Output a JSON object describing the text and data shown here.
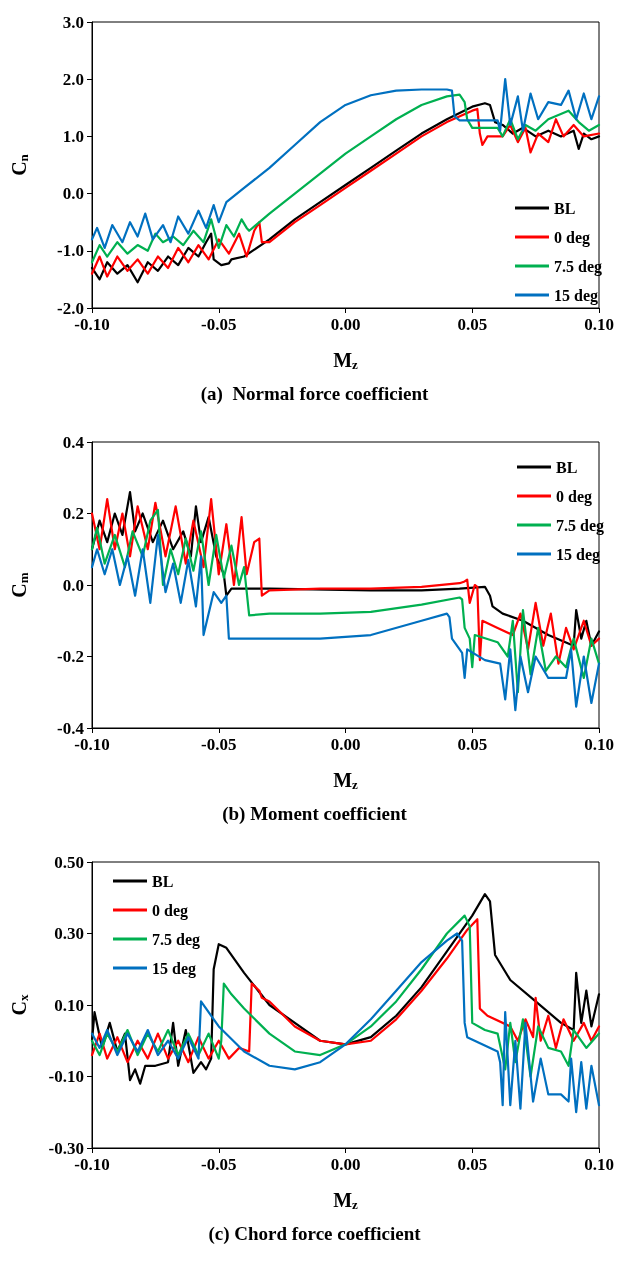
{
  "chart_data": [
    {
      "type": "line",
      "title": "(a)  Normal force coefficient",
      "xlabel": "M$_{z}$",
      "ylabel": "C$_{n}$",
      "legend": "bottom right",
      "grid": false,
      "marker": "none",
      "line_style": "solid",
      "xlim": [
        -0.1,
        0.1
      ],
      "xticks": [
        {
          "value": -0.1,
          "label": "-0.10"
        },
        {
          "value": -0.05,
          "label": "-0.05"
        },
        {
          "value": 0,
          "label": "0.00"
        },
        {
          "value": 0.05,
          "label": "0.05"
        },
        {
          "value": 0.1,
          "label": "0.10"
        }
      ],
      "ylim": [
        -2,
        3
      ],
      "yticks": [
        {
          "value": -2,
          "label": "-2.0"
        },
        {
          "value": -1,
          "label": "-1.0"
        },
        {
          "value": 0,
          "label": "0.0"
        },
        {
          "value": 1,
          "label": "1.0"
        },
        {
          "value": 2,
          "label": "2.0"
        },
        {
          "value": 3,
          "label": "3.0"
        }
      ],
      "series": [
        {
          "name": "BL",
          "color": "#000000",
          "x": [
            -0.1,
            -0.097,
            -0.094,
            -0.09,
            -0.086,
            -0.082,
            -0.078,
            -0.074,
            -0.07,
            -0.066,
            -0.062,
            -0.058,
            -0.055,
            -0.053,
            -0.052,
            -0.049,
            -0.046,
            -0.045,
            -0.04,
            -0.03,
            -0.02,
            -0.01,
            0,
            0.01,
            0.02,
            0.03,
            0.04,
            0.05,
            0.055,
            0.057,
            0.059,
            0.062,
            0.066,
            0.07,
            0.075,
            0.08,
            0.085,
            0.09,
            0.092,
            0.094,
            0.097,
            0.1
          ],
          "values": [
            -1.3,
            -1.5,
            -1.2,
            -1.4,
            -1.25,
            -1.55,
            -1.2,
            -1.35,
            -1.1,
            -1.25,
            -0.95,
            -1.1,
            -0.85,
            -0.7,
            -1.15,
            -1.25,
            -1.22,
            -1.15,
            -1.1,
            -0.8,
            -0.45,
            -0.15,
            0.15,
            0.45,
            0.75,
            1.05,
            1.3,
            1.52,
            1.58,
            1.55,
            1.25,
            1.2,
            1.05,
            1.15,
            1.0,
            1.1,
            1.0,
            1.1,
            0.78,
            1.05,
            0.95,
            1.0
          ]
        },
        {
          "name": "0 deg",
          "color": "#ff0000",
          "x": [
            -0.1,
            -0.097,
            -0.094,
            -0.09,
            -0.086,
            -0.082,
            -0.078,
            -0.074,
            -0.07,
            -0.066,
            -0.062,
            -0.058,
            -0.054,
            -0.05,
            -0.046,
            -0.042,
            -0.039,
            -0.036,
            -0.034,
            -0.033,
            -0.03,
            -0.02,
            -0.01,
            0,
            0.01,
            0.02,
            0.03,
            0.04,
            0.05,
            0.052,
            0.053,
            0.054,
            0.056,
            0.062,
            0.065,
            0.068,
            0.071,
            0.073,
            0.076,
            0.08,
            0.083,
            0.086,
            0.09,
            0.094,
            0.1
          ],
          "values": [
            -1.4,
            -1.1,
            -1.45,
            -1.1,
            -1.35,
            -1.15,
            -1.4,
            -1.1,
            -1.3,
            -0.95,
            -1.2,
            -0.9,
            -1.15,
            -0.8,
            -1.05,
            -0.7,
            -1.1,
            -0.65,
            -0.5,
            -0.85,
            -0.85,
            -0.5,
            -0.2,
            0.1,
            0.4,
            0.7,
            1.0,
            1.25,
            1.45,
            1.48,
            1.05,
            0.85,
            1.0,
            1.0,
            1.2,
            0.9,
            1.15,
            0.72,
            1.05,
            0.9,
            1.3,
            1.0,
            1.2,
            1.0,
            1.05
          ]
        },
        {
          "name": "7.5 deg",
          "color": "#00b050",
          "x": [
            -0.1,
            -0.097,
            -0.094,
            -0.09,
            -0.086,
            -0.082,
            -0.078,
            -0.075,
            -0.072,
            -0.068,
            -0.064,
            -0.06,
            -0.056,
            -0.053,
            -0.05,
            -0.047,
            -0.044,
            -0.041,
            -0.039,
            -0.038,
            -0.03,
            -0.02,
            -0.01,
            0,
            0.01,
            0.02,
            0.03,
            0.04,
            0.045,
            0.047,
            0.048,
            0.05,
            0.06,
            0.062,
            0.065,
            0.068,
            0.071,
            0.075,
            0.08,
            0.088,
            0.092,
            0.096,
            0.1
          ],
          "values": [
            -1.2,
            -0.9,
            -1.1,
            -0.85,
            -1.05,
            -0.9,
            -1.0,
            -0.7,
            -0.85,
            -0.75,
            -0.9,
            -0.65,
            -0.85,
            -0.45,
            -0.95,
            -0.55,
            -0.75,
            -0.45,
            -0.6,
            -0.65,
            -0.35,
            0.0,
            0.35,
            0.7,
            1.0,
            1.3,
            1.55,
            1.7,
            1.73,
            1.6,
            1.3,
            1.15,
            1.15,
            1.0,
            1.3,
            0.95,
            1.2,
            1.1,
            1.3,
            1.45,
            1.25,
            1.1,
            1.2
          ]
        },
        {
          "name": "15 deg",
          "color": "#0070c0",
          "x": [
            -0.1,
            -0.098,
            -0.095,
            -0.092,
            -0.088,
            -0.085,
            -0.082,
            -0.079,
            -0.076,
            -0.072,
            -0.069,
            -0.066,
            -0.062,
            -0.058,
            -0.055,
            -0.052,
            -0.05,
            -0.047,
            -0.04,
            -0.03,
            -0.02,
            -0.01,
            0,
            0.01,
            0.02,
            0.03,
            0.04,
            0.042,
            0.043,
            0.045,
            0.06,
            0.061,
            0.063,
            0.065,
            0.068,
            0.07,
            0.073,
            0.076,
            0.08,
            0.085,
            0.088,
            0.091,
            0.094,
            0.097,
            0.1
          ],
          "values": [
            -0.8,
            -0.6,
            -0.95,
            -0.55,
            -0.85,
            -0.5,
            -0.75,
            -0.35,
            -0.8,
            -0.55,
            -0.85,
            -0.4,
            -0.7,
            -0.3,
            -0.6,
            -0.2,
            -0.5,
            -0.15,
            0.1,
            0.45,
            0.85,
            1.25,
            1.55,
            1.72,
            1.8,
            1.82,
            1.82,
            1.8,
            1.35,
            1.28,
            1.28,
            1.1,
            2.0,
            1.2,
            1.7,
            1.1,
            1.75,
            1.3,
            1.6,
            1.55,
            1.8,
            1.3,
            1.75,
            1.3,
            1.7
          ]
        }
      ]
    },
    {
      "type": "line",
      "title": "(b) Moment coefficient",
      "xlabel": "M$_{z}$",
      "ylabel": "C$_{m}$",
      "legend": "top right",
      "grid": false,
      "marker": "none",
      "line_style": "solid",
      "xlim": [
        -0.1,
        0.1
      ],
      "xticks": [
        {
          "value": -0.1,
          "label": "-0.10"
        },
        {
          "value": -0.05,
          "label": "-0.05"
        },
        {
          "value": 0,
          "label": "0.00"
        },
        {
          "value": 0.05,
          "label": "0.05"
        },
        {
          "value": 0.1,
          "label": "0.10"
        }
      ],
      "ylim": [
        -0.4,
        0.4
      ],
      "yticks": [
        -0.4,
        -0.2,
        {
          "value": 0,
          "label": "0.0"
        },
        0.2,
        0.4
      ],
      "series": [
        {
          "name": "BL",
          "color": "#000000",
          "x": [
            -0.1,
            -0.097,
            -0.094,
            -0.091,
            -0.088,
            -0.085,
            -0.083,
            -0.08,
            -0.076,
            -0.072,
            -0.068,
            -0.064,
            -0.061,
            -0.059,
            -0.057,
            -0.054,
            -0.051,
            -0.048,
            -0.047,
            -0.045,
            -0.03,
            0.01,
            0.03,
            0.045,
            0.055,
            0.057,
            0.058,
            0.062,
            0.07,
            0.08,
            0.09,
            0.091,
            0.093,
            0.095,
            0.097,
            0.1
          ],
          "values": [
            0.1,
            0.18,
            0.12,
            0.2,
            0.14,
            0.26,
            0.15,
            0.2,
            0.12,
            0.18,
            0.1,
            0.15,
            0.08,
            0.22,
            0.12,
            0.19,
            0.08,
            0.03,
            -0.03,
            -0.01,
            -0.01,
            -0.015,
            -0.015,
            -0.01,
            -0.005,
            -0.03,
            -0.06,
            -0.08,
            -0.1,
            -0.14,
            -0.17,
            -0.07,
            -0.15,
            -0.1,
            -0.17,
            -0.13
          ]
        },
        {
          "name": "0 deg",
          "color": "#ff0000",
          "x": [
            -0.1,
            -0.097,
            -0.094,
            -0.091,
            -0.088,
            -0.085,
            -0.082,
            -0.078,
            -0.075,
            -0.071,
            -0.067,
            -0.063,
            -0.06,
            -0.056,
            -0.053,
            -0.05,
            -0.047,
            -0.044,
            -0.041,
            -0.039,
            -0.036,
            -0.034,
            -0.033,
            -0.03,
            -0.01,
            0.01,
            0.03,
            0.045,
            0.047,
            0.048,
            0.049,
            0.051,
            0.052,
            0.053,
            0.054,
            0.06,
            0.066,
            0.069,
            0.072,
            0.075,
            0.078,
            0.081,
            0.084,
            0.087,
            0.09,
            0.094,
            0.097,
            0.1
          ],
          "values": [
            0.2,
            0.1,
            0.24,
            0.1,
            0.2,
            0.08,
            0.22,
            0.1,
            0.23,
            0.08,
            0.22,
            0.06,
            0.18,
            0.05,
            0.24,
            0.03,
            0.17,
            0.0,
            0.19,
            0.03,
            0.12,
            0.13,
            -0.03,
            -0.015,
            -0.01,
            -0.01,
            -0.005,
            0.005,
            0.01,
            0.015,
            -0.05,
            0.0,
            -0.005,
            -0.21,
            -0.1,
            -0.12,
            -0.14,
            -0.08,
            -0.18,
            -0.05,
            -0.17,
            -0.08,
            -0.22,
            -0.12,
            -0.18,
            -0.1,
            -0.17,
            -0.15
          ]
        },
        {
          "name": "7.5 deg",
          "color": "#00b050",
          "x": [
            -0.1,
            -0.098,
            -0.095,
            -0.091,
            -0.087,
            -0.084,
            -0.08,
            -0.077,
            -0.074,
            -0.072,
            -0.069,
            -0.066,
            -0.063,
            -0.06,
            -0.057,
            -0.054,
            -0.051,
            -0.048,
            -0.045,
            -0.042,
            -0.04,
            -0.038,
            -0.03,
            -0.01,
            0.01,
            0.03,
            0.045,
            0.046,
            0.047,
            0.049,
            0.05,
            0.051,
            0.06,
            0.064,
            0.066,
            0.068,
            0.07,
            0.073,
            0.076,
            0.079,
            0.083,
            0.087,
            0.09,
            0.094,
            0.097,
            0.1
          ],
          "values": [
            0.1,
            0.16,
            0.06,
            0.14,
            0.05,
            0.15,
            0.08,
            0.18,
            0.21,
            0.0,
            0.1,
            0.03,
            0.13,
            0.04,
            0.15,
            0.0,
            0.14,
            0.02,
            0.11,
            0.0,
            0.05,
            -0.085,
            -0.08,
            -0.08,
            -0.075,
            -0.055,
            -0.035,
            -0.04,
            -0.12,
            -0.15,
            -0.23,
            -0.14,
            -0.16,
            -0.2,
            -0.1,
            -0.3,
            -0.07,
            -0.25,
            -0.12,
            -0.24,
            -0.2,
            -0.23,
            -0.15,
            -0.26,
            -0.15,
            -0.22
          ]
        },
        {
          "name": "15 deg",
          "color": "#0070c0",
          "x": [
            -0.1,
            -0.098,
            -0.095,
            -0.092,
            -0.089,
            -0.086,
            -0.083,
            -0.08,
            -0.077,
            -0.074,
            -0.071,
            -0.068,
            -0.065,
            -0.062,
            -0.059,
            -0.057,
            -0.056,
            -0.052,
            -0.049,
            -0.047,
            -0.046,
            -0.03,
            -0.01,
            0.01,
            0.03,
            0.04,
            0.041,
            0.042,
            0.046,
            0.047,
            0.048,
            0.055,
            0.061,
            0.063,
            0.065,
            0.067,
            0.069,
            0.072,
            0.075,
            0.08,
            0.087,
            0.089,
            0.091,
            0.094,
            0.097,
            0.1
          ],
          "values": [
            0.05,
            0.1,
            0.03,
            0.1,
            0.0,
            0.08,
            -0.03,
            0.1,
            -0.05,
            0.14,
            -0.02,
            0.06,
            -0.05,
            0.07,
            -0.06,
            0.08,
            -0.14,
            -0.02,
            -0.05,
            -0.03,
            -0.15,
            -0.15,
            -0.15,
            -0.14,
            -0.1,
            -0.08,
            -0.09,
            -0.15,
            -0.19,
            -0.26,
            -0.18,
            -0.21,
            -0.22,
            -0.32,
            -0.18,
            -0.35,
            -0.2,
            -0.3,
            -0.2,
            -0.26,
            -0.26,
            -0.18,
            -0.34,
            -0.2,
            -0.33,
            -0.22
          ]
        }
      ]
    },
    {
      "type": "line",
      "title": "(c) Chord force coefficient",
      "xlabel": "M$_{z}$",
      "ylabel": "C$_{x}$",
      "legend": "top left",
      "grid": false,
      "marker": "none",
      "line_style": "solid",
      "xlim": [
        -0.1,
        0.1
      ],
      "xticks": [
        {
          "value": -0.1,
          "label": "-0.10"
        },
        {
          "value": -0.05,
          "label": "-0.05"
        },
        {
          "value": 0,
          "label": "0.00"
        },
        {
          "value": 0.05,
          "label": "0.05"
        },
        {
          "value": 0.1,
          "label": "0.10"
        }
      ],
      "ylim": [
        -0.3,
        0.5
      ],
      "yticks": [
        {
          "value": -0.3,
          "label": "-0.30"
        },
        {
          "value": -0.1,
          "label": "-0.10"
        },
        {
          "value": 0.1,
          "label": "0.10"
        },
        {
          "value": 0.3,
          "label": "0.30"
        },
        {
          "value": 0.5,
          "label": "0.50"
        }
      ],
      "series": [
        {
          "name": "BL",
          "color": "#000000",
          "x": [
            -0.1,
            -0.099,
            -0.096,
            -0.093,
            -0.09,
            -0.087,
            -0.085,
            -0.083,
            -0.081,
            -0.079,
            -0.075,
            -0.07,
            -0.068,
            -0.066,
            -0.063,
            -0.06,
            -0.057,
            -0.055,
            -0.053,
            -0.052,
            -0.05,
            -0.047,
            -0.04,
            -0.03,
            -0.01,
            0,
            0.01,
            0.02,
            0.03,
            0.04,
            0.05,
            0.055,
            0.057,
            0.059,
            0.065,
            0.075,
            0.085,
            0.09,
            0.091,
            0.093,
            0.095,
            0.097,
            0.1
          ],
          "values": [
            0.0,
            0.08,
            -0.02,
            0.05,
            -0.03,
            0.02,
            -0.11,
            -0.08,
            -0.12,
            -0.07,
            -0.07,
            -0.06,
            0.05,
            -0.07,
            0.03,
            -0.09,
            -0.06,
            -0.08,
            -0.05,
            0.2,
            0.27,
            0.26,
            0.19,
            0.1,
            0.0,
            -0.01,
            0.01,
            0.07,
            0.15,
            0.25,
            0.35,
            0.41,
            0.39,
            0.24,
            0.17,
            0.11,
            0.05,
            0.03,
            0.19,
            0.05,
            0.14,
            0.04,
            0.13
          ]
        },
        {
          "name": "0 deg",
          "color": "#ff0000",
          "x": [
            -0.1,
            -0.097,
            -0.094,
            -0.09,
            -0.086,
            -0.082,
            -0.078,
            -0.074,
            -0.07,
            -0.066,
            -0.062,
            -0.058,
            -0.054,
            -0.05,
            -0.046,
            -0.042,
            -0.038,
            -0.037,
            -0.034,
            -0.033,
            -0.03,
            -0.02,
            -0.01,
            0,
            0.01,
            0.02,
            0.03,
            0.04,
            0.048,
            0.052,
            0.053,
            0.056,
            0.065,
            0.068,
            0.071,
            0.074,
            0.075,
            0.077,
            0.08,
            0.083,
            0.086,
            0.09,
            0.094,
            0.097,
            0.1
          ],
          "values": [
            -0.04,
            0.02,
            -0.05,
            0.01,
            -0.06,
            0.0,
            -0.05,
            0.02,
            -0.05,
            0.0,
            -0.06,
            0.01,
            -0.05,
            0.0,
            -0.05,
            -0.02,
            -0.03,
            0.16,
            0.14,
            0.12,
            0.11,
            0.04,
            0.0,
            -0.01,
            0.0,
            0.06,
            0.14,
            0.23,
            0.31,
            0.34,
            0.09,
            0.07,
            0.04,
            0.0,
            0.06,
            0.01,
            0.12,
            0.0,
            0.07,
            -0.02,
            0.06,
            0.0,
            0.05,
            0.0,
            0.04
          ]
        },
        {
          "name": "7.5 deg",
          "color": "#00b050",
          "x": [
            -0.1,
            -0.097,
            -0.094,
            -0.09,
            -0.086,
            -0.082,
            -0.078,
            -0.074,
            -0.07,
            -0.066,
            -0.062,
            -0.058,
            -0.054,
            -0.05,
            -0.049,
            -0.048,
            -0.045,
            -0.04,
            -0.03,
            -0.02,
            -0.01,
            0,
            0.01,
            0.02,
            0.03,
            0.04,
            0.047,
            0.049,
            0.05,
            0.055,
            0.06,
            0.063,
            0.065,
            0.067,
            0.07,
            0.073,
            0.076,
            0.08,
            0.085,
            0.088,
            0.09,
            0.095,
            0.1
          ],
          "values": [
            0.0,
            -0.04,
            0.02,
            -0.03,
            0.03,
            -0.04,
            0.02,
            -0.03,
            0.03,
            -0.04,
            0.02,
            -0.04,
            0.02,
            -0.05,
            0.0,
            0.16,
            0.13,
            0.09,
            0.02,
            -0.03,
            -0.04,
            -0.01,
            0.04,
            0.11,
            0.2,
            0.3,
            0.35,
            0.32,
            0.05,
            0.03,
            0.02,
            -0.08,
            0.05,
            -0.06,
            0.06,
            -0.1,
            0.04,
            -0.02,
            -0.03,
            -0.07,
            0.03,
            -0.02,
            0.02
          ]
        },
        {
          "name": "15 deg",
          "color": "#0070c0",
          "x": [
            -0.1,
            -0.097,
            -0.094,
            -0.09,
            -0.086,
            -0.082,
            -0.078,
            -0.074,
            -0.07,
            -0.066,
            -0.062,
            -0.058,
            -0.057,
            -0.05,
            -0.04,
            -0.03,
            -0.02,
            -0.01,
            0,
            0.01,
            0.02,
            0.03,
            0.04,
            0.044,
            0.046,
            0.047,
            0.048,
            0.06,
            0.061,
            0.062,
            0.063,
            0.065,
            0.067,
            0.069,
            0.071,
            0.074,
            0.077,
            0.08,
            0.085,
            0.088,
            0.089,
            0.091,
            0.093,
            0.095,
            0.097,
            0.1
          ],
          "values": [
            0.02,
            -0.02,
            0.03,
            -0.04,
            0.02,
            -0.03,
            0.03,
            -0.04,
            0.0,
            -0.05,
            0.01,
            -0.05,
            0.11,
            0.04,
            -0.03,
            -0.07,
            -0.08,
            -0.06,
            -0.01,
            0.06,
            0.14,
            0.22,
            0.28,
            0.3,
            0.28,
            0.05,
            0.01,
            -0.03,
            -0.06,
            -0.18,
            0.08,
            -0.18,
            0.0,
            -0.19,
            0.05,
            -0.17,
            -0.05,
            -0.15,
            -0.15,
            -0.17,
            -0.05,
            -0.2,
            -0.06,
            -0.19,
            -0.07,
            -0.18
          ]
        }
      ]
    }
  ]
}
